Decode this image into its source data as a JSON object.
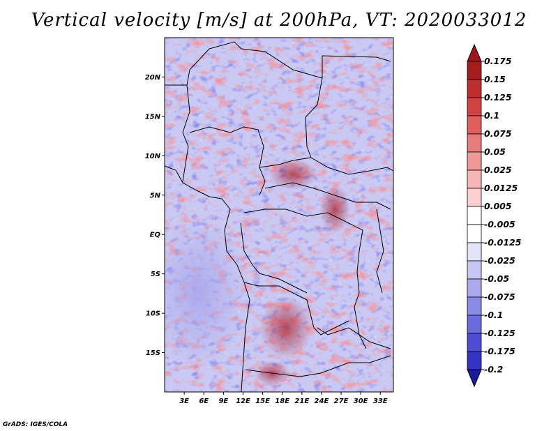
{
  "title": "Vertical velocity [m/s] at 200hPa, VT: 2020033012",
  "credit": "GrADS: IGES/COLA",
  "map": {
    "lat_range": [
      -20,
      25
    ],
    "lon_range": [
      0,
      35
    ],
    "lat_ticks": [
      {
        "value": 20,
        "label": "20N"
      },
      {
        "value": 15,
        "label": "15N"
      },
      {
        "value": 10,
        "label": "10N"
      },
      {
        "value": 5,
        "label": "5N"
      },
      {
        "value": 0,
        "label": "EQ"
      },
      {
        "value": -5,
        "label": "5S"
      },
      {
        "value": -10,
        "label": "10S"
      },
      {
        "value": -15,
        "label": "15S"
      }
    ],
    "lon_ticks": [
      {
        "value": 3,
        "label": "3E"
      },
      {
        "value": 6,
        "label": "6E"
      },
      {
        "value": 9,
        "label": "9E"
      },
      {
        "value": 12,
        "label": "12E"
      },
      {
        "value": 15,
        "label": "15E"
      },
      {
        "value": 18,
        "label": "18E"
      },
      {
        "value": 21,
        "label": "21E"
      },
      {
        "value": 24,
        "label": "24E"
      },
      {
        "value": 27,
        "label": "27E"
      },
      {
        "value": 30,
        "label": "30E"
      },
      {
        "value": 33,
        "label": "33E"
      }
    ]
  },
  "colorbar": {
    "levels": [
      {
        "label": "0.175",
        "color": "#a51c1c"
      },
      {
        "label": "0.15",
        "color": "#bd2f2f"
      },
      {
        "label": "0.125",
        "color": "#d14242"
      },
      {
        "label": "0.1",
        "color": "#e05e5e"
      },
      {
        "label": "0.075",
        "color": "#ea7b7b"
      },
      {
        "label": "0.05",
        "color": "#f29898"
      },
      {
        "label": "0.025",
        "color": "#f7b5b5"
      },
      {
        "label": "0.0125",
        "color": "#fbcfcf"
      },
      {
        "label": "0.005",
        "color": "#fde6e6"
      },
      {
        "label": "-0.005",
        "color": "#ffffff"
      },
      {
        "label": "-0.0125",
        "color": "#e4e4fb"
      },
      {
        "label": "-0.025",
        "color": "#c8c8f7"
      },
      {
        "label": "-0.05",
        "color": "#aaaaf1"
      },
      {
        "label": "-0.075",
        "color": "#8a8aea"
      },
      {
        "label": "-0.1",
        "color": "#6b6be0"
      },
      {
        "label": "-0.125",
        "color": "#4e4ed4"
      },
      {
        "label": "-0.175",
        "color": "#3333c4"
      },
      {
        "label": "-0.2",
        "color": "#2020ae"
      }
    ],
    "top_color": "#a0141c",
    "bottom_color": "#1a1aa0"
  }
}
